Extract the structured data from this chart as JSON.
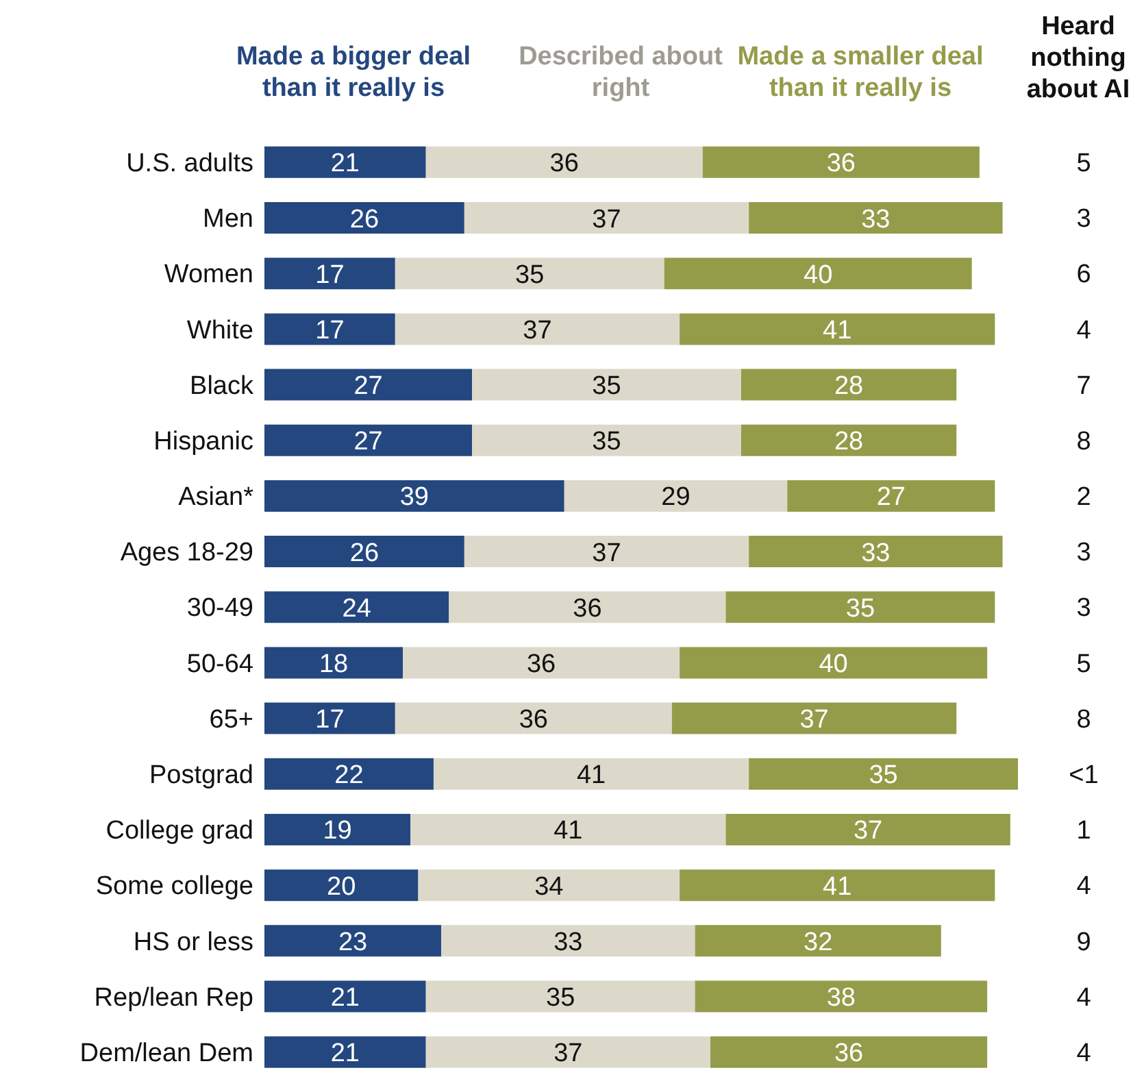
{
  "chart_data": {
    "type": "bar",
    "orientation": "horizontal",
    "stacked": true,
    "data_labels": true,
    "legend": "top",
    "categories": [
      "U.S. adults",
      "Men",
      "Women",
      "White",
      "Black",
      "Hispanic",
      "Asian*",
      "Ages 18-29",
      "30-49",
      "50-64",
      "65+",
      "Postgrad",
      "College grad",
      "Some college",
      "HS or less",
      "Rep/lean Rep",
      "Dem/lean Dem"
    ],
    "series": [
      {
        "name": "Made a bigger deal than it really is",
        "color": "#24477f",
        "values": [
          21,
          26,
          17,
          17,
          27,
          27,
          39,
          26,
          24,
          18,
          17,
          22,
          19,
          20,
          23,
          21,
          21
        ]
      },
      {
        "name": "Described about right",
        "color": "#dcd9cb",
        "values": [
          36,
          37,
          35,
          37,
          35,
          35,
          29,
          37,
          36,
          36,
          36,
          41,
          41,
          34,
          33,
          35,
          37
        ]
      },
      {
        "name": "Made a smaller deal than it really is",
        "color": "#949c4a",
        "values": [
          36,
          33,
          40,
          41,
          28,
          28,
          27,
          33,
          35,
          40,
          37,
          35,
          37,
          41,
          32,
          38,
          36
        ]
      }
    ],
    "annotations": [
      "Heard nothing about AI",
      "5",
      "3",
      "6",
      "4",
      "7",
      "8",
      "2",
      "3",
      "3",
      "5",
      "8",
      "<1",
      "1",
      "4",
      "9",
      "4",
      "4"
    ]
  }
}
